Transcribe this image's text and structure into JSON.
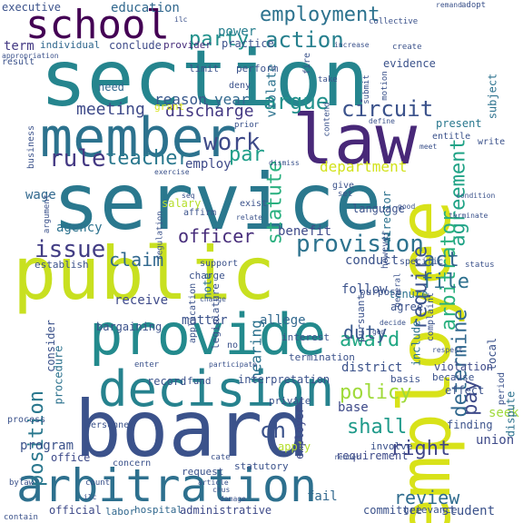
{
  "words": [
    {
      "text": "employee",
      "color": "#d8e219",
      "rot": -90
    },
    {
      "text": "section",
      "color": "#25858e",
      "rot": 0
    },
    {
      "text": "service",
      "color": "#2a788e",
      "rot": 0
    },
    {
      "text": "public",
      "color": "#c8e020",
      "rot": 0
    },
    {
      "text": "board",
      "color": "#3b528b",
      "rot": 0
    },
    {
      "text": "law",
      "color": "#482878",
      "rot": 0
    },
    {
      "text": "member",
      "color": "#2c728e",
      "rot": 0
    },
    {
      "text": "provide",
      "color": "#238a8d",
      "rot": 0
    },
    {
      "text": "decision",
      "color": "#26828e",
      "rot": 0
    },
    {
      "text": "arbitration",
      "color": "#2d708e",
      "rot": 0
    },
    {
      "text": "contract",
      "color": "#3e4a89",
      "rot": -90
    },
    {
      "text": "school",
      "color": "#440154",
      "rot": 0
    },
    {
      "text": "employment",
      "color": "#2c728e",
      "rot": 0
    },
    {
      "text": "action",
      "color": "#27808e",
      "rot": 0
    },
    {
      "text": "party",
      "color": "#21918c",
      "rot": 0
    },
    {
      "text": "agreement",
      "color": "#20a386",
      "rot": -90
    },
    {
      "text": "arbitrator",
      "color": "#2ab07f",
      "rot": -90
    },
    {
      "text": "circuit",
      "color": "#3b528b",
      "rot": 0
    },
    {
      "text": "argue",
      "color": "#21918c",
      "rot": 0
    },
    {
      "text": "work",
      "color": "#3e4a89",
      "rot": 0
    },
    {
      "text": "teacher",
      "color": "#2a788e",
      "rot": 0
    },
    {
      "text": "rule",
      "color": "#443983",
      "rot": 0
    },
    {
      "text": "par",
      "color": "#1f9e89",
      "rot": 0
    },
    {
      "text": "statute",
      "color": "#2ab07f",
      "rot": -90
    },
    {
      "text": "require",
      "color": "#3b528b",
      "rot": -90
    },
    {
      "text": "authority",
      "color": "#3e4a89",
      "rot": -90
    },
    {
      "text": "provision",
      "color": "#2c728e",
      "rot": 0
    },
    {
      "text": "issue",
      "color": "#433e85",
      "rot": 0
    },
    {
      "text": "officer",
      "color": "#472d7b",
      "rot": 0
    },
    {
      "text": "claim",
      "color": "#31688e",
      "rot": 0
    },
    {
      "text": "act",
      "color": "#33638d",
      "rot": 0
    },
    {
      "text": "file",
      "color": "#2d708e",
      "rot": 0
    },
    {
      "text": "determine",
      "color": "#31688e",
      "rot": -90
    },
    {
      "text": "pay",
      "color": "#3e4a89",
      "rot": -90
    },
    {
      "text": "position",
      "color": "#2a788e",
      "rot": -90
    },
    {
      "text": "award",
      "color": "#22a884",
      "rot": 0
    },
    {
      "text": "duty",
      "color": "#38588c",
      "rot": 0
    },
    {
      "text": "policy",
      "color": "#9fda3a",
      "rot": 0
    },
    {
      "text": "ch",
      "color": "#3b528b",
      "rot": 0
    },
    {
      "text": "shall",
      "color": "#1f9a8a",
      "rot": 0
    },
    {
      "text": "right",
      "color": "#404688",
      "rot": 0
    },
    {
      "text": "review",
      "color": "#2f6c8e",
      "rot": 0
    },
    {
      "text": "department",
      "color": "#d2e21b",
      "rot": 0
    },
    {
      "text": "hearing",
      "color": "#2c728e",
      "rot": -90
    },
    {
      "text": "discharge",
      "color": "#443983",
      "rot": 0
    },
    {
      "text": "meeting",
      "color": "#3e4a89",
      "rot": 0
    },
    {
      "text": "reason",
      "color": "#38588c",
      "rot": 0
    },
    {
      "text": "year",
      "color": "#31688e",
      "rot": 0
    },
    {
      "text": "power",
      "color": "#277f8e",
      "rot": 0
    },
    {
      "text": "education",
      "color": "#31688e",
      "rot": 0
    },
    {
      "text": "executive",
      "color": "#3b528b",
      "rot": 0
    },
    {
      "text": "term",
      "color": "#443983",
      "rot": 0
    },
    {
      "text": "individual",
      "color": "#31688e",
      "rot": 0
    },
    {
      "text": "conclude",
      "color": "#3e4a89",
      "rot": 0
    },
    {
      "text": "provider",
      "color": "#472d7b",
      "rot": 0
    },
    {
      "text": "practice",
      "color": "#3b528b",
      "rot": 0
    },
    {
      "text": "violate",
      "color": "#2c728e",
      "rot": -90
    },
    {
      "text": "evidence",
      "color": "#3b528b",
      "rot": 0
    },
    {
      "text": "subject",
      "color": "#2c728e",
      "rot": -90
    },
    {
      "text": "present",
      "color": "#2a788e",
      "rot": 0
    },
    {
      "text": "need",
      "color": "#31688e",
      "rot": 0
    },
    {
      "text": "grant",
      "color": "#d8e219",
      "rot": 0
    },
    {
      "text": "employ",
      "color": "#3e4a89",
      "rot": 0
    },
    {
      "text": "wage",
      "color": "#31688e",
      "rot": 0
    },
    {
      "text": "agency",
      "color": "#2c728e",
      "rot": 0
    },
    {
      "text": "salary",
      "color": "#b5de2b",
      "rot": 0
    },
    {
      "text": "benefit",
      "color": "#3e4a89",
      "rot": 0
    },
    {
      "text": "director",
      "color": "#2c728e",
      "rot": -90
    },
    {
      "text": "language",
      "color": "#3b528b",
      "rot": 0
    },
    {
      "text": "conduct",
      "color": "#3b528b",
      "rot": 0
    },
    {
      "text": "include",
      "color": "#2c728e",
      "rot": -90
    },
    {
      "text": "follow",
      "color": "#3b528b",
      "rot": 0
    },
    {
      "text": "tenure",
      "color": "#2c728e",
      "rot": 0
    },
    {
      "text": "agree",
      "color": "#3b528b",
      "rot": 0
    },
    {
      "text": "receive",
      "color": "#3e4a89",
      "rot": 0
    },
    {
      "text": "note",
      "color": "#2c728e",
      "rot": -90
    },
    {
      "text": "consider",
      "color": "#3b528b",
      "rot": -90
    },
    {
      "text": "procedure",
      "color": "#2c728e",
      "rot": -90
    },
    {
      "text": "matter",
      "color": "#3b528b",
      "rot": 0
    },
    {
      "text": "allege",
      "color": "#31688e",
      "rot": 0
    },
    {
      "text": "district",
      "color": "#3b528b",
      "rot": 0
    },
    {
      "text": "bargaining",
      "color": "#3b528b",
      "rot": 0
    },
    {
      "text": "program",
      "color": "#3b528b",
      "rot": 0
    },
    {
      "text": "seek",
      "color": "#9fda3a",
      "rot": 0
    },
    {
      "text": "union",
      "color": "#3e4a89",
      "rot": 0
    },
    {
      "text": "student",
      "color": "#3b528b",
      "rot": 0
    },
    {
      "text": "committee",
      "color": "#3b528b",
      "rot": 0
    },
    {
      "text": "grievance",
      "color": "#3b528b",
      "rot": 0
    },
    {
      "text": "administrative",
      "color": "#3e4a89",
      "rot": 0
    },
    {
      "text": "official",
      "color": "#3e4a89",
      "rot": 0
    },
    {
      "text": "labor",
      "color": "#31688e",
      "rot": 0
    },
    {
      "text": "hospital",
      "color": "#31688e",
      "rot": 0
    },
    {
      "text": "fail",
      "color": "#31688e",
      "rot": 0
    },
    {
      "text": "apply",
      "color": "#b5de2b",
      "rot": 0
    },
    {
      "text": "base",
      "color": "#3e4a89",
      "rot": 0
    },
    {
      "text": "employer",
      "color": "#3e4a89",
      "rot": -90
    },
    {
      "text": "interpretation",
      "color": "#3b528b",
      "rot": 0
    },
    {
      "text": "record",
      "color": "#3b528b",
      "rot": 0
    },
    {
      "text": "fund",
      "color": "#3b528b",
      "rot": 0
    },
    {
      "text": "office",
      "color": "#3e4a89",
      "rot": 0
    },
    {
      "text": "request",
      "color": "#3b528b",
      "rot": 0
    },
    {
      "text": "statutory",
      "color": "#3b528b",
      "rot": 0
    },
    {
      "text": "finding",
      "color": "#3b528b",
      "rot": 0
    },
    {
      "text": "violation",
      "color": "#3e4a89",
      "rot": 0
    },
    {
      "text": "requirement",
      "color": "#3e4a89",
      "rot": 0
    },
    {
      "text": "effect",
      "color": "#3b528b",
      "rot": 0
    },
    {
      "text": "basis",
      "color": "#3b528b",
      "rot": 0
    },
    {
      "text": "because",
      "color": "#3b528b",
      "rot": 0
    },
    {
      "text": "local",
      "color": "#3b528b",
      "rot": -90
    },
    {
      "text": "dispute",
      "color": "#2c728e",
      "rot": -90
    },
    {
      "text": "involve",
      "color": "#3b528b",
      "rot": 0
    },
    {
      "text": "private",
      "color": "#3b528b",
      "rot": 0
    },
    {
      "text": "limit",
      "color": "#3b528b",
      "rot": 0
    },
    {
      "text": "perform",
      "color": "#3b528b",
      "rot": 0
    },
    {
      "text": "deny",
      "color": "#3b528b",
      "rot": 0
    },
    {
      "text": "charge",
      "color": "#3b528b",
      "rot": 0
    },
    {
      "text": "legislature",
      "color": "#3b528b",
      "rot": -90
    },
    {
      "text": "purpose",
      "color": "#3b528b",
      "rot": 0
    },
    {
      "text": "pursuant",
      "color": "#3b528b",
      "rot": -90
    },
    {
      "text": "however",
      "color": "#3b528b",
      "rot": -90
    },
    {
      "text": "specific",
      "color": "#3b528b",
      "rot": 0
    },
    {
      "text": "exist",
      "color": "#3b528b",
      "rot": 0
    },
    {
      "text": "affirm",
      "color": "#3b528b",
      "rot": 0
    },
    {
      "text": "interest",
      "color": "#3b528b",
      "rot": 0
    },
    {
      "text": "termination",
      "color": "#3b528b",
      "rot": 0
    },
    {
      "text": "establish",
      "color": "#3b528b",
      "rot": 0
    },
    {
      "text": "argument",
      "color": "#3b528b",
      "rot": -90
    },
    {
      "text": "regulation",
      "color": "#3b528b",
      "rot": -90
    },
    {
      "text": "personnel",
      "color": "#3b528b",
      "rot": 0
    },
    {
      "text": "concern",
      "color": "#3b528b",
      "rot": 0
    },
    {
      "text": "process",
      "color": "#3b528b",
      "rot": 0
    },
    {
      "text": "support",
      "color": "#3b528b",
      "rot": 0
    },
    {
      "text": "application",
      "color": "#3b528b",
      "rot": -90
    },
    {
      "text": "business",
      "color": "#3b528b",
      "rot": -90
    },
    {
      "text": "appropriation",
      "color": "#3b528b",
      "rot": 0
    },
    {
      "text": "result",
      "color": "#3b528b",
      "rot": 0
    },
    {
      "text": "enter",
      "color": "#3b528b",
      "rot": 0
    },
    {
      "text": "participate",
      "color": "#3b528b",
      "rot": 0
    },
    {
      "text": "gen",
      "color": "#3b528b",
      "rot": 0
    },
    {
      "text": "decide",
      "color": "#3b528b",
      "rot": 0
    },
    {
      "text": "complaint",
      "color": "#3b528b",
      "rot": -90
    },
    {
      "text": "period",
      "color": "#3b528b",
      "rot": -90
    },
    {
      "text": "respect",
      "color": "#3b528b",
      "rot": 0
    },
    {
      "text": "status",
      "color": "#3b528b",
      "rot": 0
    },
    {
      "text": "terminate",
      "color": "#3b528b",
      "rot": 0
    },
    {
      "text": "condition",
      "color": "#3b528b",
      "rot": 0
    },
    {
      "text": "write",
      "color": "#3b528b",
      "rot": 0
    },
    {
      "text": "entitle",
      "color": "#3b528b",
      "rot": 0
    },
    {
      "text": "meet",
      "color": "#3b528b",
      "rot": 0
    },
    {
      "text": "define",
      "color": "#3b528b",
      "rot": 0
    },
    {
      "text": "contend",
      "color": "#3b528b",
      "rot": -90
    },
    {
      "text": "submit",
      "color": "#3b528b",
      "rot": -90
    },
    {
      "text": "take",
      "color": "#3b528b",
      "rot": 0
    },
    {
      "text": "motion",
      "color": "#3b528b",
      "rot": -90
    },
    {
      "text": "fire",
      "color": "#3b528b",
      "rot": -90
    },
    {
      "text": "create",
      "color": "#3b528b",
      "rot": 0
    },
    {
      "text": "collective",
      "color": "#3b528b",
      "rot": 0
    },
    {
      "text": "increase",
      "color": "#3b528b",
      "rot": 0
    },
    {
      "text": "remand",
      "color": "#3b528b",
      "rot": 0
    },
    {
      "text": "adopt",
      "color": "#3b528b",
      "rot": 0
    },
    {
      "text": "ilc",
      "color": "#3b528b",
      "rot": 0
    },
    {
      "text": "set",
      "color": "#3b528b",
      "rot": 0
    },
    {
      "text": "give",
      "color": "#3b528b",
      "rot": 0
    },
    {
      "text": "relate",
      "color": "#3b528b",
      "rot": 0
    },
    {
      "text": "exercise",
      "color": "#3b528b",
      "rot": 0
    },
    {
      "text": "prior",
      "color": "#3b528b",
      "rot": 0
    },
    {
      "text": "dismiss",
      "color": "#3b528b",
      "rot": 0
    },
    {
      "text": "cate",
      "color": "#3b528b",
      "rot": 0
    },
    {
      "text": "count",
      "color": "#3b528b",
      "rot": 0
    },
    {
      "text": "bylaw",
      "color": "#3b528b",
      "rot": 0
    },
    {
      "text": "no",
      "color": "#3b528b",
      "rot": 0
    },
    {
      "text": "general",
      "color": "#3b528b",
      "rot": -90
    },
    {
      "text": "article",
      "color": "#3b528b",
      "rot": 0
    },
    {
      "text": "contain",
      "color": "#3b528b",
      "rot": 0
    },
    {
      "text": "damage",
      "color": "#3b528b",
      "rot": 0
    },
    {
      "text": "chus",
      "color": "#3b528b",
      "rot": 0
    },
    {
      "text": "ilc",
      "color": "#3b528b",
      "rot": 0
    },
    {
      "text": "render",
      "color": "#3b528b",
      "rot": 0
    },
    {
      "text": "change",
      "color": "#3b528b",
      "rot": 0
    },
    {
      "text": "seq",
      "color": "#3b528b",
      "rot": 0
    },
    {
      "text": "good",
      "color": "#3b528b",
      "rot": 0
    }
  ]
}
